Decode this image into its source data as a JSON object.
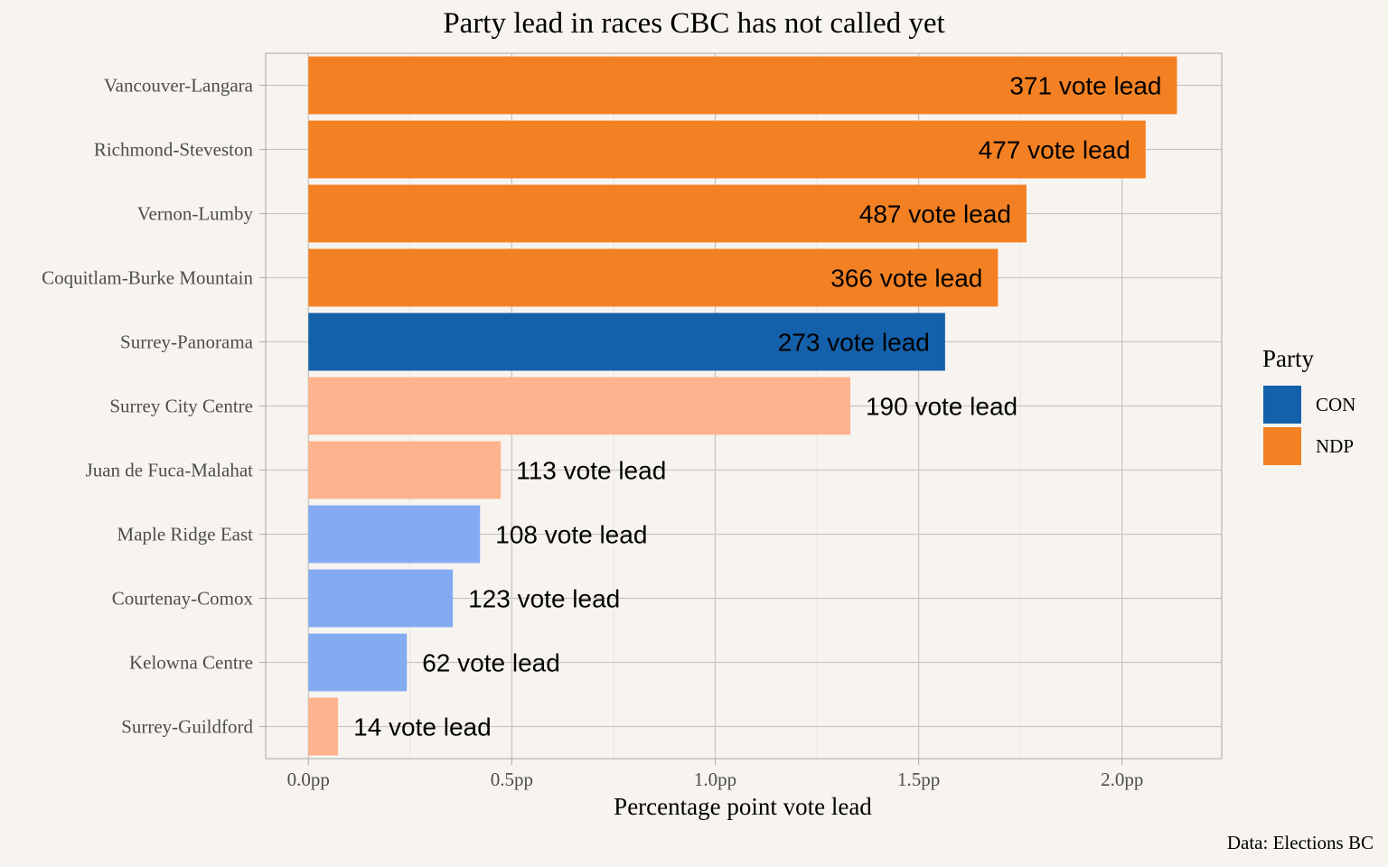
{
  "chart_data": {
    "type": "bar",
    "orientation": "horizontal",
    "title": "Party lead in races CBC has not called yet",
    "xlabel": "Percentage point vote lead",
    "ylabel": "",
    "xlim": [
      -0.105,
      2.245
    ],
    "x_ticks": [
      0.0,
      0.5,
      1.0,
      1.5,
      2.0
    ],
    "x_tick_labels": [
      "0.0pp",
      "0.5pp",
      "1.0pp",
      "1.5pp",
      "2.0pp"
    ],
    "grid": true,
    "legend": {
      "title": "Party",
      "position": "right",
      "entries": [
        {
          "label": "CON",
          "color": "#1460aa"
        },
        {
          "label": "NDP",
          "color": "#f38123"
        }
      ]
    },
    "caption": "Data: Elections BC",
    "bars": [
      {
        "category": "Vancouver-Langara",
        "value": 2.135,
        "label": "371 vote lead",
        "party": "NDP",
        "color": "#f38123",
        "called_style": "dark"
      },
      {
        "category": "Richmond-Steveston",
        "value": 2.058,
        "label": "477 vote lead",
        "party": "NDP",
        "color": "#f38123",
        "called_style": "dark"
      },
      {
        "category": "Vernon-Lumby",
        "value": 1.765,
        "label": "487 vote lead",
        "party": "NDP",
        "color": "#f38123",
        "called_style": "dark"
      },
      {
        "category": "Coquitlam-Burke Mountain",
        "value": 1.695,
        "label": "366 vote lead",
        "party": "NDP",
        "color": "#f38123",
        "called_style": "dark"
      },
      {
        "category": "Surrey-Panorama",
        "value": 1.565,
        "label": "273 vote lead",
        "party": "CON",
        "color": "#1460aa",
        "called_style": "dark"
      },
      {
        "category": "Surrey City Centre",
        "value": 1.332,
        "label": "190 vote lead",
        "party": "NDP",
        "color": "#fdb38e",
        "called_style": "light"
      },
      {
        "category": "Juan de Fuca-Malahat",
        "value": 0.473,
        "label": "113 vote lead",
        "party": "NDP",
        "color": "#fdb38e",
        "called_style": "light"
      },
      {
        "category": "Maple Ridge East",
        "value": 0.422,
        "label": "108 vote lead",
        "party": "CON",
        "color": "#84abf2",
        "called_style": "light"
      },
      {
        "category": "Courtenay-Comox",
        "value": 0.355,
        "label": "123 vote lead",
        "party": "CON",
        "color": "#84abf2",
        "called_style": "light"
      },
      {
        "category": "Kelowna Centre",
        "value": 0.242,
        "label": "62 vote lead",
        "party": "CON",
        "color": "#84abf2",
        "called_style": "light"
      },
      {
        "category": "Surrey-Guildford",
        "value": 0.073,
        "label": "14 vote lead",
        "party": "NDP",
        "color": "#fdb38e",
        "called_style": "light"
      }
    ]
  }
}
